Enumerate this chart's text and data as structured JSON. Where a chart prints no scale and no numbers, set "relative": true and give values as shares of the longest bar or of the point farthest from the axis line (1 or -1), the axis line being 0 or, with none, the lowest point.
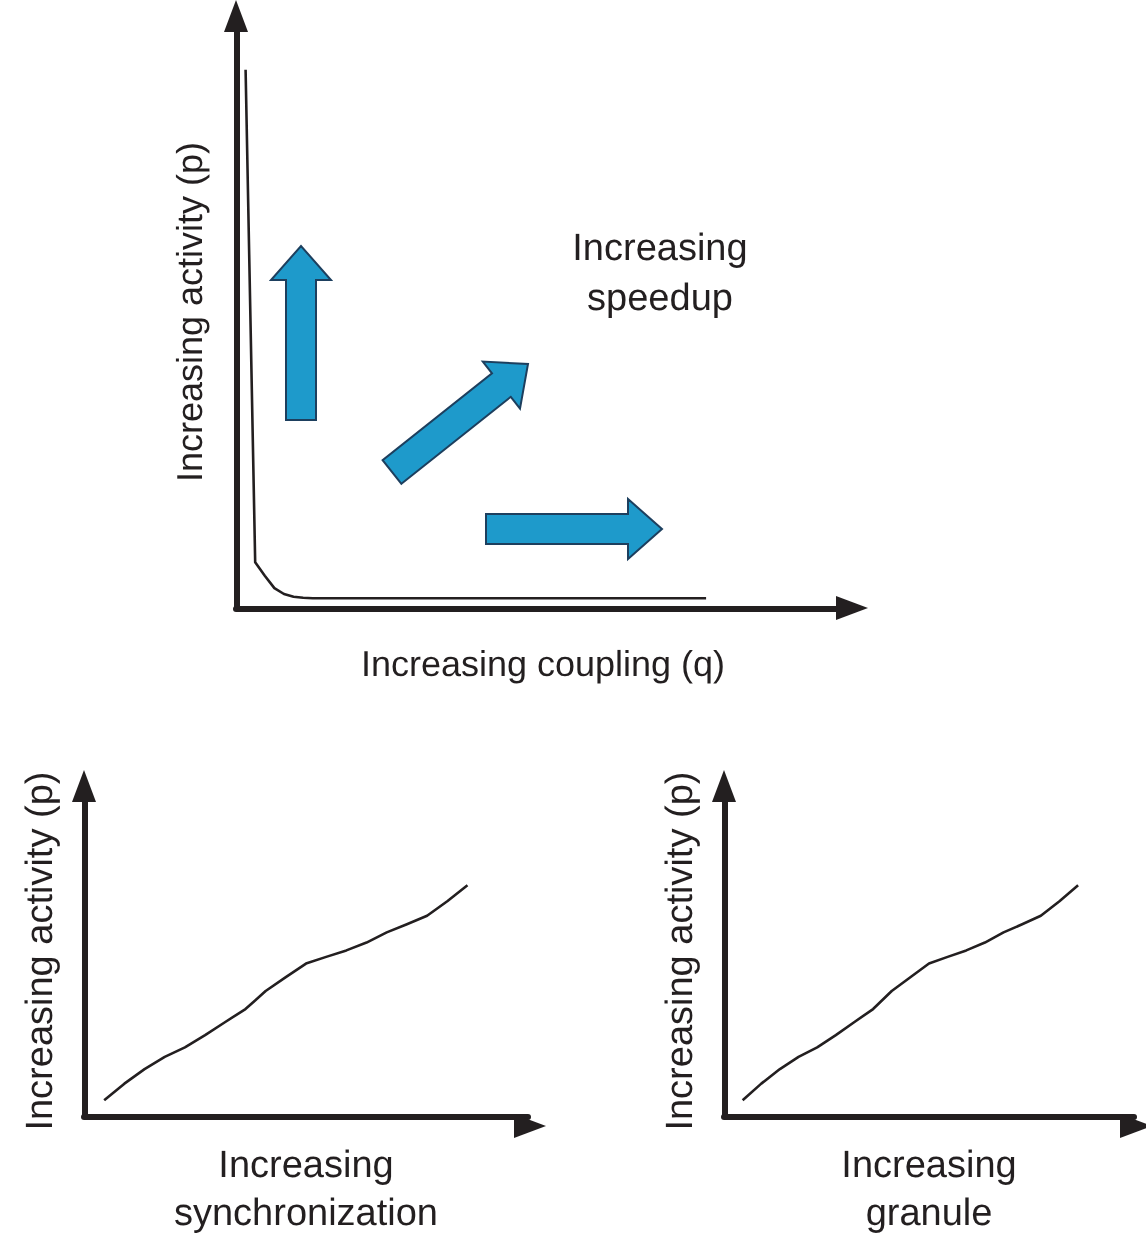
{
  "chart_data": [
    {
      "type": "line",
      "relative": true,
      "marker": "none",
      "color": "#231f20",
      "xlabel": "Increasing coupling (q)",
      "ylabel": "Increasing activity (p)",
      "annotations": [
        "Increasing speedup"
      ],
      "categories": [
        null,
        null,
        null,
        null,
        null,
        null,
        null,
        null,
        null,
        null,
        null,
        null,
        null,
        null,
        null,
        null,
        null,
        null,
        null,
        null,
        null,
        null,
        null,
        null,
        null,
        null,
        null,
        null,
        null,
        null,
        null,
        null,
        null,
        null,
        null,
        null,
        null,
        null,
        null,
        null,
        null,
        null,
        null,
        null,
        null,
        null,
        null,
        null,
        null,
        null,
        null,
        null,
        null,
        null,
        null,
        null,
        null,
        null,
        null,
        null,
        null,
        null,
        null,
        null,
        null
      ],
      "values": [
        null,
        1.0,
        0.085,
        0.06,
        0.037,
        0.026,
        0.021,
        0.019,
        0.018,
        0.018,
        0.018,
        0.018,
        0.018,
        0.018,
        0.018,
        0.018,
        0.018,
        0.018,
        0.018,
        0.018,
        0.018,
        0.018,
        0.018,
        0.018,
        0.018,
        0.018,
        0.018,
        0.018,
        0.018,
        0.018,
        0.018,
        0.018,
        0.018,
        0.018,
        0.018,
        0.018,
        0.018,
        0.018,
        0.018,
        0.018,
        0.018,
        0.018,
        0.018,
        0.018,
        0.018,
        0.018,
        0.018,
        0.018,
        0.018,
        0.018,
        null,
        null,
        null,
        null,
        null,
        null,
        null,
        null,
        null,
        null,
        null,
        null,
        null,
        null,
        null
      ]
    },
    {
      "type": "line",
      "relative": true,
      "marker": "none",
      "color": "#231f20",
      "xlabel": "Increasing synchronization",
      "ylabel": "Increasing activity (p)",
      "categories": [
        null,
        null,
        null,
        null,
        null,
        null,
        null,
        null,
        null,
        null,
        null,
        null,
        null,
        null,
        null,
        null,
        null,
        null,
        null,
        null,
        null,
        null,
        null
      ],
      "values": [
        null,
        0.069,
        0.141,
        0.204,
        0.257,
        0.298,
        0.351,
        0.408,
        0.464,
        0.542,
        0.602,
        0.661,
        0.69,
        0.718,
        0.752,
        0.796,
        0.831,
        0.868,
        0.931,
        1.0,
        null,
        null,
        null
      ]
    },
    {
      "type": "line",
      "relative": true,
      "marker": "none",
      "color": "#231f20",
      "xlabel": "Increasing granule",
      "ylabel": "Increasing activity (p)",
      "categories": [
        null,
        null,
        null,
        null,
        null,
        null,
        null,
        null,
        null,
        null,
        null,
        null,
        null,
        null,
        null,
        null,
        null,
        null,
        null,
        null,
        null,
        null,
        null
      ],
      "values": [
        null,
        0.069,
        0.141,
        0.204,
        0.257,
        0.298,
        0.351,
        0.408,
        0.464,
        0.542,
        0.602,
        0.661,
        0.69,
        0.718,
        0.752,
        0.796,
        0.831,
        0.868,
        0.931,
        1.0,
        null,
        null,
        null
      ]
    }
  ]
}
